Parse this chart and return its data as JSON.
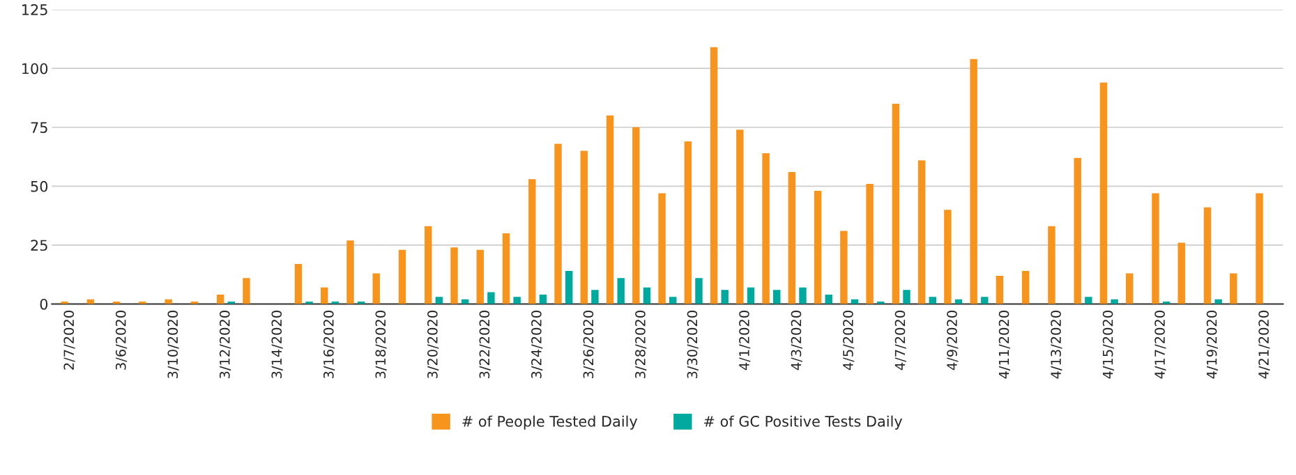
{
  "chart_data": {
    "type": "bar",
    "categories": [
      "2/7/2020",
      null,
      "3/6/2020",
      null,
      "3/10/2020",
      null,
      "3/12/2020",
      null,
      "3/14/2020",
      null,
      "3/16/2020",
      null,
      "3/18/2020",
      null,
      "3/20/2020",
      null,
      "3/22/2020",
      null,
      "3/24/2020",
      null,
      "3/26/2020",
      null,
      "3/28/2020",
      null,
      "3/30/2020",
      null,
      "4/1/2020",
      null,
      "4/3/2020",
      null,
      "4/5/2020",
      null,
      "4/7/2020",
      null,
      "4/9/2020",
      null,
      "4/11/2020",
      null,
      "4/13/2020",
      null,
      "4/15/2020",
      null,
      "4/17/2020",
      null,
      "4/19/2020",
      null,
      "4/21/2020"
    ],
    "series": [
      {
        "name": "# of People Tested Daily",
        "color": "#f7941d",
        "values": [
          1,
          2,
          1,
          1,
          2,
          1,
          4,
          11,
          0,
          17,
          7,
          27,
          13,
          23,
          33,
          24,
          23,
          30,
          53,
          68,
          65,
          80,
          75,
          47,
          69,
          109,
          74,
          64,
          56,
          48,
          31,
          51,
          85,
          61,
          40,
          104,
          12,
          14,
          33,
          62,
          94,
          13,
          47,
          26,
          41,
          13,
          47
        ]
      },
      {
        "name": "# of GC Positive Tests Daily",
        "color": "#00a99d",
        "values": [
          0,
          0,
          0,
          0,
          0,
          0,
          1,
          0,
          0,
          1,
          1,
          1,
          0,
          0,
          3,
          2,
          5,
          3,
          4,
          14,
          6,
          11,
          7,
          3,
          11,
          6,
          7,
          6,
          7,
          4,
          2,
          1,
          6,
          3,
          2,
          3,
          0,
          0,
          0,
          3,
          2,
          0,
          1,
          0,
          2,
          0,
          0
        ]
      }
    ],
    "ylim": [
      0,
      125
    ],
    "yticks": [
      0,
      25,
      50,
      75,
      100,
      125
    ],
    "grid": "y",
    "legend": "bottom"
  }
}
